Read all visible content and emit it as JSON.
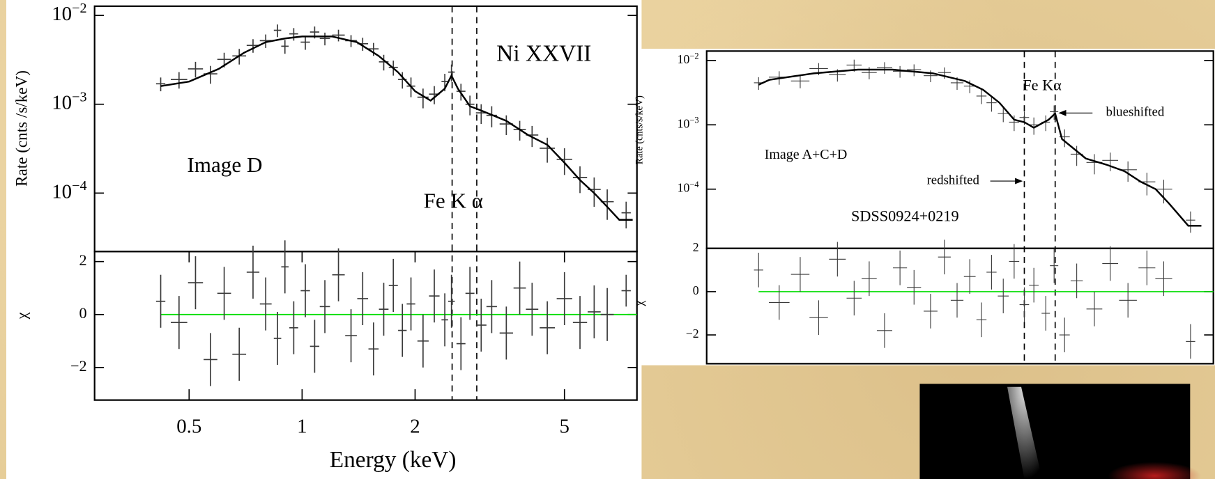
{
  "chart_data": [
    {
      "type": "scatter",
      "ylabel": "Rate (cnts /s/keV)",
      "log_x": true,
      "log_y": true,
      "xlim": [
        0.28,
        7.8
      ],
      "ylim": [
        2.2e-05,
        0.0127
      ],
      "yticks": [
        {
          "value": 0.01,
          "label": "10−2"
        },
        {
          "value": 0.001,
          "label": "10−3"
        },
        {
          "value": 0.0001,
          "label": "10−4"
        }
      ],
      "annotations": [
        "Ni XXVII",
        "Image D",
        "Fe K α"
      ],
      "vlines": [
        2.51,
        2.92
      ],
      "series": [
        {
          "color": "#3a3a3a",
          "x": [
            0.42,
            0.47,
            0.52,
            0.57,
            0.62,
            0.68,
            0.74,
            0.8,
            0.86,
            0.9,
            0.95,
            1.02,
            1.08,
            1.15,
            1.25,
            1.35,
            1.45,
            1.55,
            1.65,
            1.75,
            1.85,
            1.95,
            2.1,
            2.25,
            2.4,
            2.5,
            2.65,
            2.8,
            3.0,
            3.2,
            3.5,
            3.8,
            4.1,
            4.5,
            5.0,
            5.5,
            6.0,
            6.5,
            7.3
          ],
          "values": [
            0.0017,
            0.0019,
            0.0025,
            0.0022,
            0.0032,
            0.0035,
            0.0046,
            0.0052,
            0.0068,
            0.0045,
            0.0062,
            0.005,
            0.0065,
            0.0055,
            0.006,
            0.0052,
            0.0048,
            0.0042,
            0.003,
            0.0026,
            0.0019,
            0.0016,
            0.0012,
            0.0013,
            0.0018,
            0.0023,
            0.0014,
            0.001,
            0.0008,
            0.00075,
            0.0006,
            0.00052,
            0.00045,
            0.00032,
            0.00024,
            0.00015,
            0.00011,
            8e-05,
            6e-05
          ],
          "errors": [
            0.0003,
            0.0004,
            0.0005,
            0.0005,
            0.0006,
            0.0007,
            0.0008,
            0.0009,
            0.0011,
            0.0008,
            0.001,
            0.0009,
            0.001,
            0.0009,
            0.0009,
            0.0008,
            0.0008,
            0.0007,
            0.0006,
            0.0005,
            0.0004,
            0.0004,
            0.0003,
            0.0003,
            0.0004,
            0.0005,
            0.0003,
            0.00025,
            0.0002,
            0.0002,
            0.00015,
            0.00013,
            0.00012,
            0.0001,
            8e-05,
            5e-05,
            4e-05,
            3e-05,
            2e-05
          ]
        },
        {
          "type": "line",
          "color": "#000000",
          "x": [
            0.42,
            0.5,
            0.6,
            0.7,
            0.8,
            0.9,
            1.0,
            1.2,
            1.4,
            1.6,
            1.8,
            2.0,
            2.2,
            2.4,
            2.5,
            2.6,
            2.8,
            3.0,
            3.5,
            4.0,
            4.5,
            5.0,
            5.5,
            6.0,
            6.5,
            7.0,
            7.6
          ],
          "values": [
            0.0016,
            0.0018,
            0.0025,
            0.0038,
            0.005,
            0.0055,
            0.0058,
            0.0058,
            0.005,
            0.0035,
            0.0023,
            0.0014,
            0.0011,
            0.0015,
            0.0021,
            0.0015,
            0.00095,
            0.00085,
            0.00065,
            0.00045,
            0.00035,
            0.00022,
            0.00014,
            0.0001,
            7e-05,
            5e-05,
            5e-05
          ]
        }
      ]
    },
    {
      "type": "scatter",
      "ylabel": "χ",
      "xlabel": "Energy (keV)",
      "log_x": true,
      "log_y": false,
      "xlim": [
        0.28,
        7.8
      ],
      "ylim": [
        -3.23,
        2.38
      ],
      "xticks": [
        0.5,
        1,
        2,
        5
      ],
      "yticks": [
        2,
        0,
        {
          "value": -2,
          "label": "−2"
        }
      ],
      "zero_line": 0,
      "zero_line_color": "#00dd00",
      "series": [
        {
          "color": "#3a3a3a",
          "x": [
            0.42,
            0.47,
            0.52,
            0.57,
            0.62,
            0.68,
            0.74,
            0.8,
            0.86,
            0.9,
            0.95,
            1.02,
            1.08,
            1.15,
            1.25,
            1.35,
            1.45,
            1.55,
            1.65,
            1.75,
            1.85,
            1.95,
            2.1,
            2.25,
            2.4,
            2.5,
            2.65,
            2.8,
            3.0,
            3.2,
            3.5,
            3.8,
            4.1,
            4.5,
            5.0,
            5.5,
            6.0,
            6.5,
            7.3
          ],
          "values": [
            0.5,
            -0.3,
            1.2,
            -1.7,
            0.8,
            -1.5,
            1.6,
            0.4,
            -0.9,
            1.8,
            -0.5,
            0.9,
            -1.2,
            0.3,
            1.5,
            -0.8,
            0.6,
            -1.3,
            0.2,
            1.1,
            -0.6,
            0.4,
            -1.0,
            0.7,
            -0.2,
            0.5,
            -1.1,
            0.8,
            -0.4,
            0.3,
            -0.7,
            1.0,
            0.2,
            -0.5,
            0.6,
            -0.3,
            0.1,
            0.0,
            0.9
          ],
          "errors": [
            1.0,
            1.0,
            1.0,
            1.0,
            1.0,
            1.0,
            1.0,
            1.0,
            1.0,
            1.0,
            1.0,
            1.0,
            1.0,
            1.0,
            1.0,
            1.0,
            1.0,
            1.0,
            1.0,
            1.0,
            1.0,
            1.0,
            1.0,
            1.0,
            1.0,
            1.0,
            1.0,
            1.0,
            1.0,
            1.0,
            1.0,
            1.0,
            1.0,
            1.0,
            1.0,
            1.0,
            1.0,
            1.0,
            0.6
          ]
        }
      ]
    },
    {
      "type": "scatter",
      "ylabel": "Rate (cnts/s/keV)",
      "log_x": true,
      "log_y": true,
      "xlim": [
        0.3,
        8
      ],
      "ylim": [
        1.2e-05,
        0.014
      ],
      "yticks": [
        {
          "value": 0.01,
          "label": "10−2"
        },
        {
          "value": 0.001,
          "label": "10−3"
        },
        {
          "value": 0.0001,
          "label": "10−4"
        }
      ],
      "annotations": [
        "Image A+C+D",
        "SDSS0924+0219",
        "Fe Kα",
        "blueshifted",
        "redshifted"
      ],
      "vlines": [
        2.35,
        2.87
      ],
      "series": [
        {
          "color": "#3a3a3a",
          "x": [
            0.42,
            0.48,
            0.55,
            0.62,
            0.7,
            0.78,
            0.86,
            0.95,
            1.05,
            1.15,
            1.28,
            1.4,
            1.52,
            1.65,
            1.78,
            1.9,
            2.05,
            2.2,
            2.35,
            2.5,
            2.7,
            2.85,
            3.05,
            3.3,
            3.7,
            4.1,
            4.6,
            5.2,
            5.8,
            6.9
          ],
          "values": [
            0.0045,
            0.0055,
            0.0048,
            0.0075,
            0.006,
            0.0085,
            0.0065,
            0.0078,
            0.0068,
            0.0072,
            0.0058,
            0.0065,
            0.0045,
            0.004,
            0.0028,
            0.0022,
            0.0015,
            0.0011,
            0.0013,
            0.001,
            0.0011,
            0.0016,
            0.00065,
            0.00035,
            0.00026,
            0.00028,
            0.0002,
            0.00013,
            0.0001,
            3.3e-05
          ],
          "errors": [
            0.001,
            0.0013,
            0.0011,
            0.0016,
            0.0013,
            0.0018,
            0.0014,
            0.0016,
            0.0014,
            0.0015,
            0.0012,
            0.0013,
            0.001,
            0.0009,
            0.0007,
            0.0006,
            0.0004,
            0.0003,
            0.0003,
            0.0003,
            0.0003,
            0.0004,
            0.0002,
            0.00012,
            9e-05,
            9e-05,
            7e-05,
            5e-05,
            4e-05,
            1.2e-05
          ]
        },
        {
          "type": "line",
          "color": "#000000",
          "x": [
            0.42,
            0.45,
            0.6,
            0.8,
            1.0,
            1.3,
            1.6,
            1.8,
            2.0,
            2.2,
            2.35,
            2.5,
            2.75,
            2.87,
            3.0,
            3.5,
            4.0,
            4.5,
            5.0,
            5.5,
            6.0,
            6.8,
            7.4
          ],
          "values": [
            0.0042,
            0.005,
            0.0063,
            0.0072,
            0.0072,
            0.0063,
            0.0048,
            0.0035,
            0.0022,
            0.0012,
            0.0011,
            0.0009,
            0.0012,
            0.0015,
            0.0006,
            0.0003,
            0.00024,
            0.00019,
            0.00013,
            0.0001,
            6e-05,
            2.7e-05,
            2.7e-05
          ]
        }
      ]
    },
    {
      "type": "scatter",
      "ylabel": "χ",
      "log_x": true,
      "log_y": false,
      "xlim": [
        0.3,
        8
      ],
      "ylim": [
        -3.33,
        2.0
      ],
      "yticks": [
        2,
        0,
        {
          "value": -2,
          "label": "−2"
        }
      ],
      "zero_line": 0,
      "zero_line_color": "#00dd00",
      "series": [
        {
          "color": "#3a3a3a",
          "x": [
            0.42,
            0.48,
            0.55,
            0.62,
            0.7,
            0.78,
            0.86,
            0.95,
            1.05,
            1.15,
            1.28,
            1.4,
            1.52,
            1.65,
            1.78,
            1.9,
            2.05,
            2.2,
            2.35,
            2.5,
            2.7,
            2.85,
            3.05,
            3.3,
            3.7,
            4.1,
            4.6,
            5.2,
            5.8,
            6.9
          ],
          "values": [
            1.0,
            -0.5,
            0.8,
            -1.2,
            1.5,
            -0.3,
            0.6,
            -1.8,
            1.1,
            0.2,
            -0.9,
            1.6,
            -0.4,
            0.7,
            -1.3,
            0.9,
            -0.2,
            1.4,
            -0.6,
            0.3,
            -1.0,
            1.2,
            -2.0,
            0.5,
            -0.8,
            1.3,
            -0.4,
            1.1,
            0.6,
            -2.3
          ],
          "errors": [
            0.8,
            0.8,
            0.8,
            0.8,
            0.8,
            0.8,
            0.8,
            0.8,
            0.8,
            0.8,
            0.8,
            0.8,
            0.8,
            0.8,
            0.8,
            0.8,
            0.8,
            0.8,
            0.8,
            0.8,
            0.8,
            0.8,
            0.8,
            0.8,
            0.8,
            0.8,
            0.8,
            0.8,
            0.8,
            0.8
          ]
        }
      ]
    }
  ]
}
